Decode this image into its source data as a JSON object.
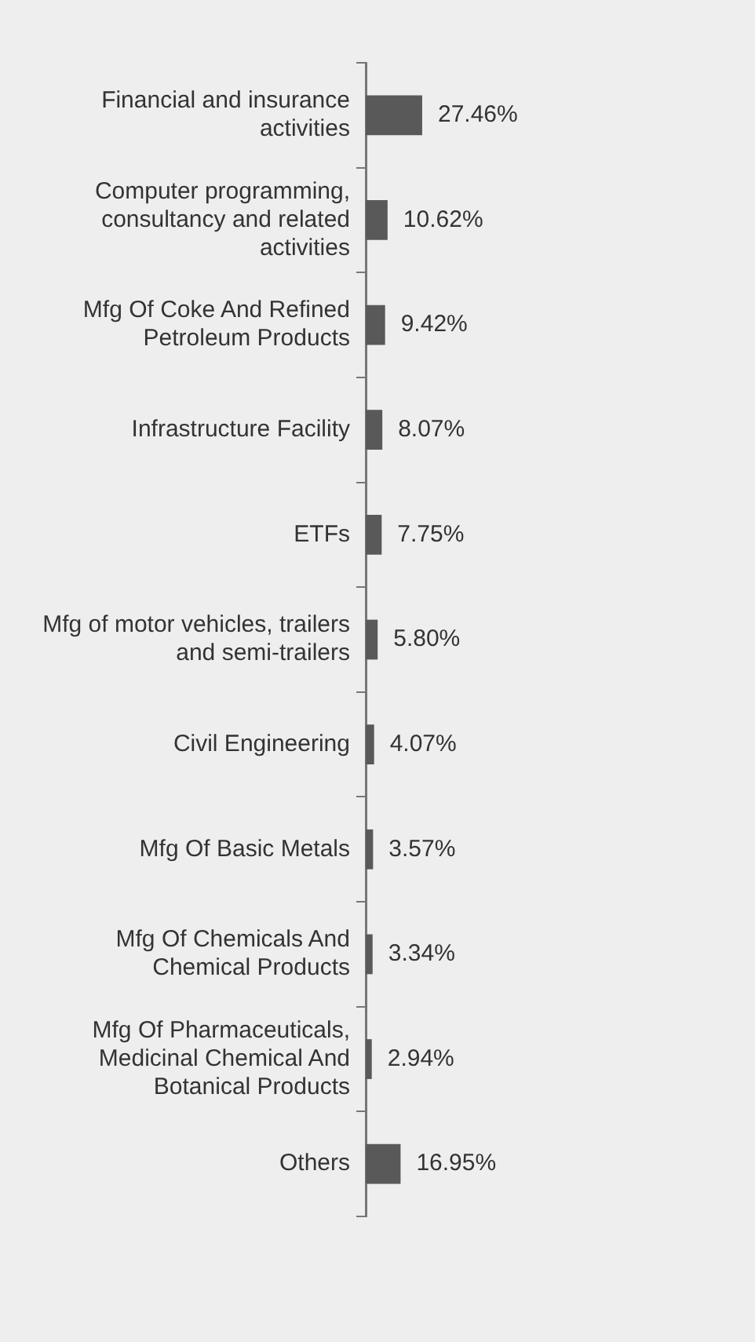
{
  "chart_data": {
    "type": "bar",
    "orientation": "horizontal",
    "categories": [
      "Financial and insurance activities",
      "Computer programming, consultancy and related activities",
      "Mfg Of Coke And Refined Petroleum Products",
      "Infrastructure Facility",
      "ETFs",
      "Mfg of motor vehicles, trailers and semi-trailers",
      "Civil Engineering",
      "Mfg Of Basic Metals",
      "Mfg Of Chemicals And Chemical Products",
      "Mfg Of Pharmaceuticals, Medicinal Chemical And Botanical Products",
      "Others"
    ],
    "values": [
      27.46,
      10.62,
      9.42,
      8.07,
      7.75,
      5.8,
      4.07,
      3.57,
      3.34,
      2.94,
      16.95
    ],
    "color": "#595959",
    "value_labels": [
      "27.46%",
      "10.62%",
      "9.42%",
      "8.07%",
      "7.75%",
      "5.80%",
      "4.07%",
      "3.57%",
      "3.34%",
      "2.94%",
      "16.95%"
    ],
    "legend": false
  }
}
